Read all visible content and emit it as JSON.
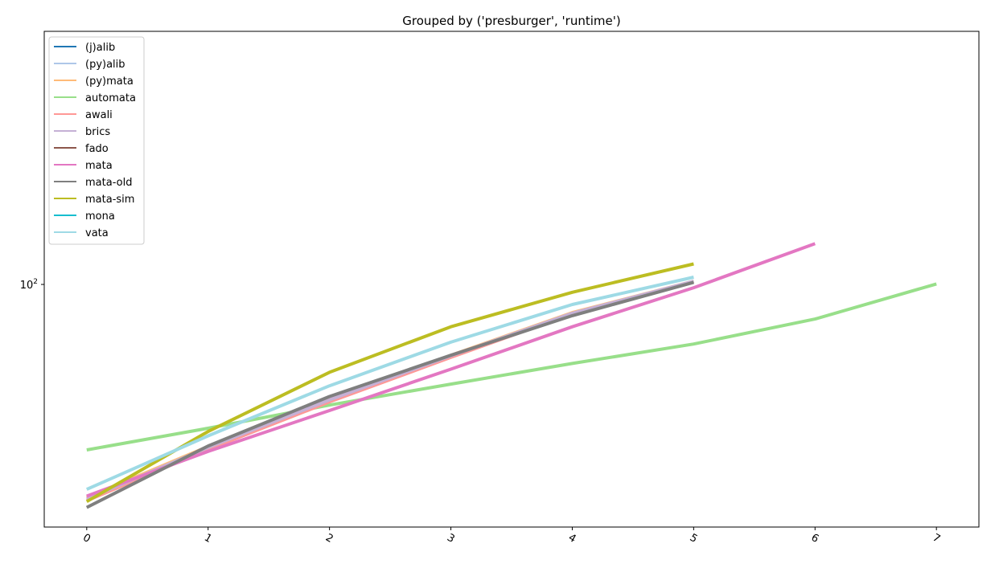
{
  "chart_data": {
    "type": "line",
    "title": "Grouped by ('presburger', 'runtime')",
    "xlabel": "",
    "ylabel": "",
    "x_ticks": [
      "0",
      "1",
      "2",
      "3",
      "4",
      "5",
      "6",
      "7"
    ],
    "xlim": [
      -0.35,
      7.35
    ],
    "y_scale": "log",
    "ylim": [
      10.5,
      1050
    ],
    "y_ticks": [
      {
        "value": 100,
        "base": "10",
        "exp": "2"
      }
    ],
    "grid": false,
    "legend_position": "top-left",
    "series": [
      {
        "name": "(j)alib",
        "color": "#1f77b4",
        "x": [],
        "y": []
      },
      {
        "name": "(py)alib",
        "color": "#aec7e8",
        "x": [],
        "y": []
      },
      {
        "name": "(py)mata",
        "color": "#ffbb78",
        "x": [
          0,
          1,
          2,
          3,
          4,
          5
        ],
        "y": [
          13.8,
          22.2,
          34.5,
          51.8,
          77.0,
          103
        ]
      },
      {
        "name": "automata",
        "color": "#98df8a",
        "x": [
          0,
          1,
          2,
          3,
          4,
          5,
          6,
          7
        ],
        "y": [
          21.5,
          26.3,
          32.6,
          39.6,
          48.0,
          57.5,
          72.5,
          100.5
        ]
      },
      {
        "name": "awali",
        "color": "#ff9896",
        "x": [
          0,
          1,
          2,
          3,
          4,
          5
        ],
        "y": [
          13.4,
          21.6,
          33.6,
          50.8,
          76.0,
          102.5
        ]
      },
      {
        "name": "brics",
        "color": "#c5b0d5",
        "x": [
          0,
          1,
          2,
          3,
          4,
          5
        ],
        "y": [
          13.6,
          22.0,
          34.2,
          51.5,
          76.5,
          103
        ]
      },
      {
        "name": "fado",
        "color": "#8c564b",
        "x": [],
        "y": []
      },
      {
        "name": "mata",
        "color": "#e377c2",
        "x": [
          0,
          1,
          2,
          3,
          4,
          5,
          6
        ],
        "y": [
          14.0,
          21.2,
          31.0,
          45.5,
          67.5,
          97.0,
          146
        ]
      },
      {
        "name": "mata-old",
        "color": "#7f7f7f",
        "x": [
          0,
          1,
          2,
          3,
          4,
          5
        ],
        "y": [
          12.6,
          22.3,
          35.3,
          51.8,
          74.8,
          102
        ]
      },
      {
        "name": "mata-sim",
        "color": "#bcbd22",
        "x": [
          0,
          1,
          2,
          3,
          4,
          5
        ],
        "y": [
          13.3,
          25.5,
          44.2,
          67.5,
          93.0,
          121
        ]
      },
      {
        "name": "mona",
        "color": "#17becf",
        "x": [],
        "y": []
      },
      {
        "name": "vata",
        "color": "#9edae5",
        "x": [
          0,
          1,
          2,
          3,
          4,
          5
        ],
        "y": [
          14.9,
          24.5,
          39.0,
          58.5,
          83.0,
          107
        ]
      }
    ]
  }
}
